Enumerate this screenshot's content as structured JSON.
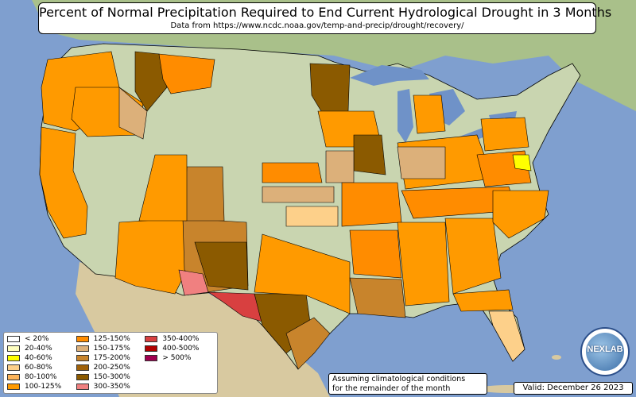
{
  "title": "Percent of Normal Precipitation Required to End Current Hydrological Drought in 3 Months",
  "subtitle": "Data from https://www.ncdc.noaa.gov/temp-and-precip/drought/recovery/",
  "legend": [
    {
      "label": "< 20%",
      "color": "#ffffff"
    },
    {
      "label": "20-40%",
      "color": "#ffffc0"
    },
    {
      "label": "40-60%",
      "color": "#ffff00"
    },
    {
      "label": "60-80%",
      "color": "#fdd08a"
    },
    {
      "label": "80-100%",
      "color": "#fcb45a"
    },
    {
      "label": "100-125%",
      "color": "#ff9a00"
    },
    {
      "label": "125-150%",
      "color": "#ff8c00"
    },
    {
      "label": "150-175%",
      "color": "#dcb07a"
    },
    {
      "label": "175-200%",
      "color": "#c8842c"
    },
    {
      "label": "200-250%",
      "color": "#a0620a"
    },
    {
      "label": "150-300%",
      "color": "#8b5a00"
    },
    {
      "label": "300-350%",
      "color": "#f08080"
    },
    {
      "label": "350-400%",
      "color": "#d84040"
    },
    {
      "label": "400-500%",
      "color": "#b00000"
    },
    {
      "label": "> 500%",
      "color": "#a00050"
    }
  ],
  "note": {
    "line1": "Assuming climatological conditions",
    "line2": "for the remainder of the month"
  },
  "valid": "Valid: December 26 2023",
  "logo_text": "NEXLAB",
  "colors": {
    "ocean": "#7f9fcf",
    "land": "#c9d5b0",
    "mexico": "#d8c9a0",
    "canada": "#a9c08a",
    "lakes": "#6f92c8",
    "state_border": "#000000"
  }
}
